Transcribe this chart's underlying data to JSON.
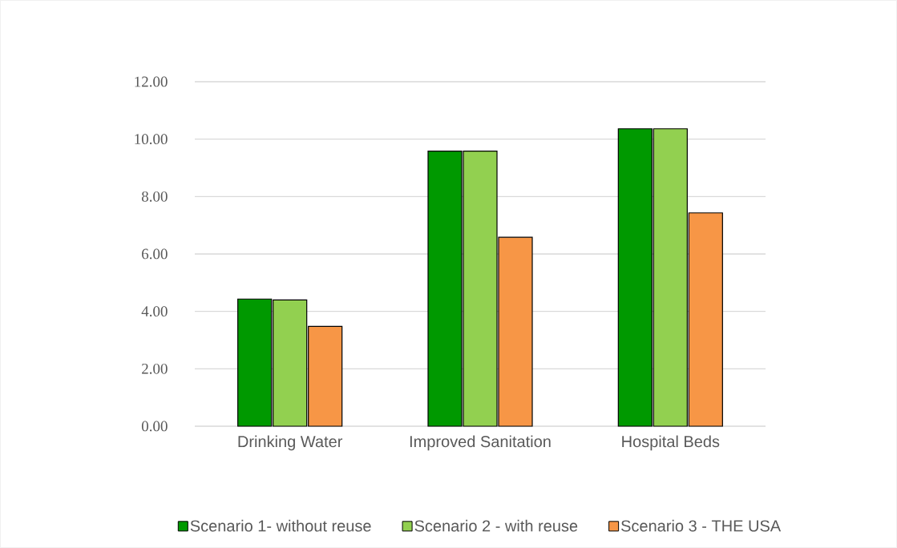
{
  "chart_data": {
    "type": "bar",
    "categories": [
      "Drinking Water",
      "Improved Sanitation",
      "Hospital Beds"
    ],
    "series": [
      {
        "name": "Scenario 1- without reuse",
        "color": "#009900",
        "values": [
          4.43,
          9.58,
          10.36
        ]
      },
      {
        "name": "Scenario 2 - with reuse",
        "color": "#92d050",
        "values": [
          4.4,
          9.58,
          10.36
        ]
      },
      {
        "name": "Scenario 3 - THE USA",
        "color": "#f79646",
        "values": [
          3.48,
          6.58,
          7.43
        ]
      }
    ],
    "ylim": [
      0,
      12
    ],
    "yticks": [
      {
        "value": 0,
        "label": "0.00"
      },
      {
        "value": 2,
        "label": "2.00"
      },
      {
        "value": 4,
        "label": "4.00"
      },
      {
        "value": 6,
        "label": "6.00"
      },
      {
        "value": 8,
        "label": "8.00"
      },
      {
        "value": 10,
        "label": "10.00"
      },
      {
        "value": 12,
        "label": "12.00"
      }
    ],
    "grid": "y",
    "legend": "bottom"
  }
}
